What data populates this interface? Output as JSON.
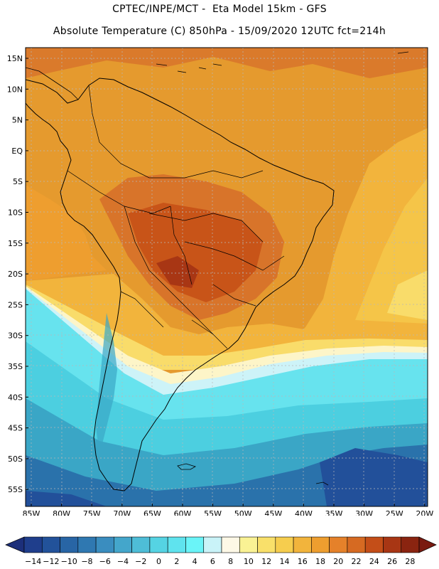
{
  "header": {
    "line1": "CPTEC/INPE/MCT -  Eta Model 15km - GFS",
    "line2": "Absolute Temperature (C) 850hPa - 15/09/2020 12UTC fct=214h"
  },
  "map": {
    "lat_labels": [
      "15N",
      "10N",
      "5N",
      "EQ",
      "5S",
      "10S",
      "15S",
      "20S",
      "25S",
      "30S",
      "35S",
      "40S",
      "45S",
      "50S",
      "55S"
    ],
    "lon_labels": [
      "85W",
      "80W",
      "75W",
      "70W",
      "65W",
      "60W",
      "55W",
      "50W",
      "45W",
      "40W",
      "35W",
      "30W",
      "25W",
      "20W"
    ],
    "bands": [
      {
        "temp": 20,
        "color": "#e59a2e"
      },
      {
        "temp": 22,
        "color": "#d8742a"
      },
      {
        "temp": 24,
        "color": "#c85418"
      },
      {
        "temp": 16,
        "color": "#f2b43c"
      },
      {
        "temp": 12,
        "color": "#f9dc6a"
      },
      {
        "temp": 6,
        "color": "#fdf8e6"
      },
      {
        "temp": 4,
        "color": "#cdf3f8"
      },
      {
        "temp": 2,
        "color": "#67e3ee"
      },
      {
        "temp": 0,
        "color": "#4ccfe0"
      },
      {
        "temp": -4,
        "color": "#3aa6c6"
      },
      {
        "temp": -8,
        "color": "#2a72ab"
      },
      {
        "temp": -12,
        "color": "#22509a"
      }
    ]
  },
  "colorbar": {
    "labels": [
      "-14",
      "-12",
      "-10",
      "-8",
      "-6",
      "-4",
      "-2",
      "0",
      "2",
      "4",
      "6",
      "8",
      "10",
      "12",
      "14",
      "16",
      "18",
      "20",
      "22",
      "24",
      "26",
      "28"
    ],
    "colors": [
      "#1f3e8c",
      "#22529a",
      "#2865a5",
      "#2f78b1",
      "#3a8dbf",
      "#44a6cb",
      "#4ebdd7",
      "#55d3e3",
      "#5fe3ee",
      "#6af4f8",
      "#c9f3f8",
      "#fdf8e6",
      "#faf294",
      "#f9e06a",
      "#f6cd4e",
      "#f2b43c",
      "#ee9e2f",
      "#e5812a",
      "#d66a22",
      "#c44e18",
      "#a83614",
      "#8a2410"
    ],
    "under_color": "#1c2f7a",
    "over_color": "#7a1a10"
  }
}
